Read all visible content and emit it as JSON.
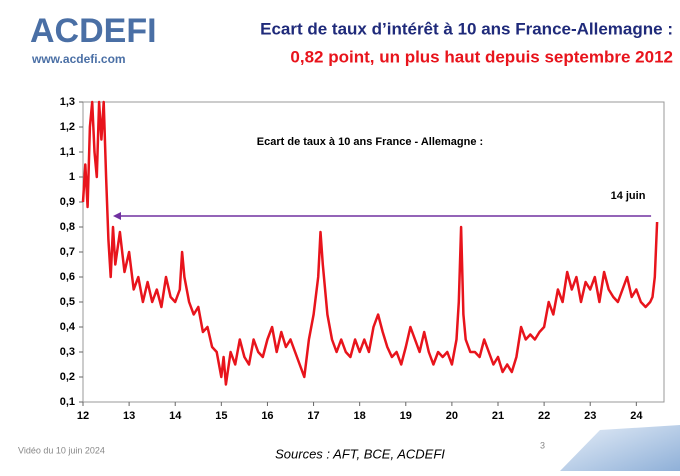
{
  "logo": {
    "name": "ACDEFI",
    "url": "www.acdefi.com"
  },
  "header": {
    "title": "Ecart de taux d’intérêt à 10 ans France-Allemagne :",
    "subtitle": "0,82 point, un plus haut depuis septembre 2012"
  },
  "chart_data": {
    "type": "line",
    "title": "Ecart de taux à 10 ans France - Allemagne :",
    "annotation": "14 juin",
    "x": [
      12.0,
      12.05,
      12.1,
      12.15,
      12.2,
      12.25,
      12.3,
      12.35,
      12.4,
      12.45,
      12.5,
      12.55,
      12.6,
      12.65,
      12.7,
      12.8,
      12.9,
      13.0,
      13.1,
      13.2,
      13.3,
      13.4,
      13.5,
      13.6,
      13.7,
      13.8,
      13.9,
      14.0,
      14.1,
      14.15,
      14.2,
      14.3,
      14.4,
      14.5,
      14.6,
      14.7,
      14.8,
      14.9,
      15.0,
      15.05,
      15.1,
      15.2,
      15.3,
      15.4,
      15.5,
      15.6,
      15.7,
      15.8,
      15.9,
      16.0,
      16.1,
      16.2,
      16.3,
      16.4,
      16.5,
      16.6,
      16.7,
      16.8,
      16.9,
      17.0,
      17.1,
      17.15,
      17.2,
      17.3,
      17.4,
      17.5,
      17.6,
      17.7,
      17.8,
      17.9,
      18.0,
      18.1,
      18.2,
      18.3,
      18.4,
      18.5,
      18.6,
      18.7,
      18.8,
      18.9,
      19.0,
      19.1,
      19.2,
      19.3,
      19.4,
      19.5,
      19.6,
      19.7,
      19.8,
      19.9,
      20.0,
      20.1,
      20.15,
      20.2,
      20.25,
      20.3,
      20.4,
      20.5,
      20.6,
      20.7,
      20.8,
      20.9,
      21.0,
      21.1,
      21.2,
      21.3,
      21.4,
      21.5,
      21.6,
      21.7,
      21.8,
      21.9,
      22.0,
      22.1,
      22.2,
      22.3,
      22.4,
      22.5,
      22.6,
      22.7,
      22.8,
      22.9,
      23.0,
      23.1,
      23.2,
      23.3,
      23.4,
      23.5,
      23.6,
      23.7,
      23.8,
      23.9,
      24.0,
      24.1,
      24.2,
      24.3,
      24.35,
      24.4,
      24.45
    ],
    "series": [
      {
        "name": "Ecart de taux",
        "color": "#e8141c",
        "values": [
          0.9,
          1.05,
          0.88,
          1.2,
          1.3,
          1.1,
          1.0,
          1.3,
          1.15,
          1.3,
          1.0,
          0.75,
          0.6,
          0.8,
          0.65,
          0.78,
          0.62,
          0.7,
          0.55,
          0.6,
          0.5,
          0.58,
          0.5,
          0.55,
          0.48,
          0.6,
          0.52,
          0.5,
          0.55,
          0.7,
          0.6,
          0.5,
          0.45,
          0.48,
          0.38,
          0.4,
          0.32,
          0.3,
          0.2,
          0.28,
          0.17,
          0.3,
          0.25,
          0.35,
          0.28,
          0.25,
          0.35,
          0.3,
          0.28,
          0.35,
          0.4,
          0.3,
          0.38,
          0.32,
          0.35,
          0.3,
          0.25,
          0.2,
          0.35,
          0.45,
          0.6,
          0.78,
          0.65,
          0.45,
          0.35,
          0.3,
          0.35,
          0.3,
          0.28,
          0.35,
          0.3,
          0.35,
          0.3,
          0.4,
          0.45,
          0.38,
          0.32,
          0.28,
          0.3,
          0.25,
          0.32,
          0.4,
          0.35,
          0.3,
          0.38,
          0.3,
          0.25,
          0.3,
          0.28,
          0.3,
          0.25,
          0.35,
          0.5,
          0.8,
          0.45,
          0.35,
          0.3,
          0.3,
          0.28,
          0.35,
          0.3,
          0.25,
          0.28,
          0.22,
          0.25,
          0.22,
          0.28,
          0.4,
          0.35,
          0.37,
          0.35,
          0.38,
          0.4,
          0.5,
          0.45,
          0.55,
          0.5,
          0.62,
          0.55,
          0.6,
          0.5,
          0.58,
          0.55,
          0.6,
          0.5,
          0.62,
          0.55,
          0.52,
          0.5,
          0.55,
          0.6,
          0.52,
          0.55,
          0.5,
          0.48,
          0.5,
          0.52,
          0.6,
          0.82
        ]
      }
    ],
    "xlim": [
      12,
      24.6
    ],
    "xticks": [
      12,
      13,
      14,
      15,
      16,
      17,
      18,
      19,
      20,
      21,
      22,
      23,
      24
    ],
    "ylim": [
      0.1,
      1.3
    ],
    "yticks": [
      {
        "value": 0.1,
        "label": "0,1"
      },
      {
        "value": 0.2,
        "label": "0,2"
      },
      {
        "value": 0.3,
        "label": "0,3"
      },
      {
        "value": 0.4,
        "label": "0,4"
      },
      {
        "value": 0.5,
        "label": "0,5"
      },
      {
        "value": 0.6,
        "label": "0,6"
      },
      {
        "value": 0.7,
        "label": "0,7"
      },
      {
        "value": 0.8,
        "label": "0,8"
      },
      {
        "value": 0.9,
        "label": "0,9"
      },
      {
        "value": 1,
        "label": "1"
      },
      {
        "value": 1.1,
        "label": "1,1"
      },
      {
        "value": 1.2,
        "label": "1,2"
      },
      {
        "value": 1.3,
        "label": "1,3"
      }
    ],
    "arrow_color": "#7030a0"
  },
  "footer": {
    "date": "Vidéo du 10 juin 2024",
    "sources": "Sources : AFT, BCE, ACDEFI",
    "page": "3"
  }
}
